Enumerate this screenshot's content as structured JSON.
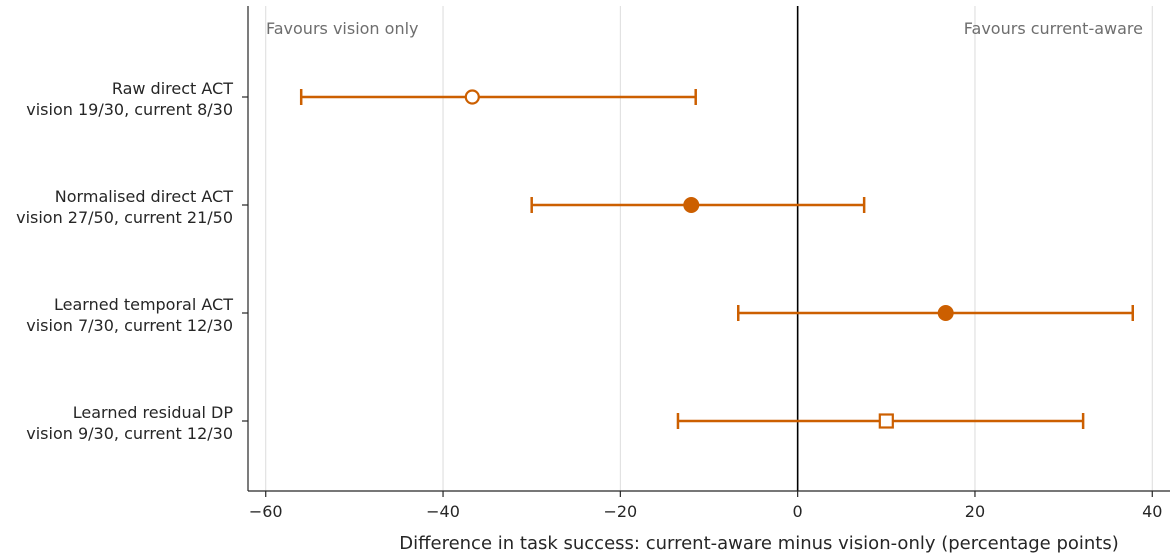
{
  "chart_data": {
    "type": "forest",
    "xlabel": "Difference in task success: current-aware minus vision-only (percentage points)",
    "xlim": [
      -62,
      42
    ],
    "xticks": [
      -60,
      -40,
      -20,
      0,
      20,
      40
    ],
    "xtick_labels": [
      "−60",
      "−40",
      "−20",
      "0",
      "20",
      "40"
    ],
    "grid": true,
    "reference_line": 0,
    "annotations": {
      "left": "Favours vision only",
      "right": "Favours current-aware"
    },
    "color": "#cc5f00",
    "rows": [
      {
        "label_line1": "Raw direct ACT",
        "label_line2": "vision 19/30, current 8/30",
        "estimate": -36.7,
        "ci": [
          -56.0,
          -11.5
        ],
        "marker": "circle-open"
      },
      {
        "label_line1": "Normalised direct ACT",
        "label_line2": "vision 27/50, current 21/50",
        "estimate": -12.0,
        "ci": [
          -30.0,
          7.5
        ],
        "marker": "circle-filled"
      },
      {
        "label_line1": "Learned temporal ACT",
        "label_line2": "vision 7/30, current 12/30",
        "estimate": 16.7,
        "ci": [
          -6.7,
          37.8
        ],
        "marker": "circle-filled"
      },
      {
        "label_line1": "Learned residual DP",
        "label_line2": "vision 9/30, current 12/30",
        "estimate": 10.0,
        "ci": [
          -13.5,
          32.2
        ],
        "marker": "square-open"
      }
    ]
  }
}
